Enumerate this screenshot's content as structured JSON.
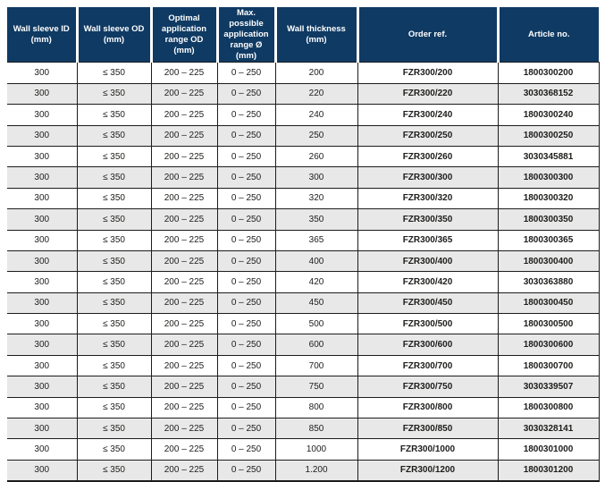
{
  "colors": {
    "header_bg": "#0f3a63",
    "header_text": "#ffffff",
    "row_alt_bg": "#e8e8e8",
    "grid_line": "#1c1c1e",
    "body_text": "#1d1d1b"
  },
  "table": {
    "headers": [
      "Wall sleeve ID\n(mm)",
      "Wall sleeve OD\n(mm)",
      "Optimal\napplication\nrange OD\n(mm)",
      "Max. possible\napplication\nrange Ø (mm)",
      "Wall thickness\n(mm)",
      "Order ref.",
      "Article no."
    ],
    "column_keys": [
      "wall-sleeve-id",
      "wall-sleeve-od",
      "optimal-application-range-od",
      "max-possible-application-range",
      "wall-thickness",
      "order-ref",
      "article-no"
    ],
    "rows": [
      [
        "300",
        "≤ 350",
        "200 – 225",
        "0 – 250",
        "200",
        "FZR300/200",
        "1800300200"
      ],
      [
        "300",
        "≤ 350",
        "200 – 225",
        "0 – 250",
        "220",
        "FZR300/220",
        "3030368152"
      ],
      [
        "300",
        "≤ 350",
        "200 – 225",
        "0 – 250",
        "240",
        "FZR300/240",
        "1800300240"
      ],
      [
        "300",
        "≤ 350",
        "200 – 225",
        "0 – 250",
        "250",
        "FZR300/250",
        "1800300250"
      ],
      [
        "300",
        "≤ 350",
        "200 – 225",
        "0 – 250",
        "260",
        "FZR300/260",
        "3030345881"
      ],
      [
        "300",
        "≤ 350",
        "200 – 225",
        "0 – 250",
        "300",
        "FZR300/300",
        "1800300300"
      ],
      [
        "300",
        "≤ 350",
        "200 – 225",
        "0 – 250",
        "320",
        "FZR300/320",
        "1800300320"
      ],
      [
        "300",
        "≤ 350",
        "200 – 225",
        "0 – 250",
        "350",
        "FZR300/350",
        "1800300350"
      ],
      [
        "300",
        "≤ 350",
        "200 – 225",
        "0 – 250",
        "365",
        "FZR300/365",
        "1800300365"
      ],
      [
        "300",
        "≤ 350",
        "200 – 225",
        "0 – 250",
        "400",
        "FZR300/400",
        "1800300400"
      ],
      [
        "300",
        "≤ 350",
        "200 – 225",
        "0 – 250",
        "420",
        "FZR300/420",
        "3030363880"
      ],
      [
        "300",
        "≤ 350",
        "200 – 225",
        "0 – 250",
        "450",
        "FZR300/450",
        "1800300450"
      ],
      [
        "300",
        "≤ 350",
        "200 – 225",
        "0 – 250",
        "500",
        "FZR300/500",
        "1800300500"
      ],
      [
        "300",
        "≤ 350",
        "200 – 225",
        "0 – 250",
        "600",
        "FZR300/600",
        "1800300600"
      ],
      [
        "300",
        "≤ 350",
        "200 – 225",
        "0 – 250",
        "700",
        "FZR300/700",
        "1800300700"
      ],
      [
        "300",
        "≤ 350",
        "200 – 225",
        "0 – 250",
        "750",
        "FZR300/750",
        "3030339507"
      ],
      [
        "300",
        "≤ 350",
        "200 – 225",
        "0 – 250",
        "800",
        "FZR300/800",
        "1800300800"
      ],
      [
        "300",
        "≤ 350",
        "200 – 225",
        "0 – 250",
        "850",
        "FZR300/850",
        "3030328141"
      ],
      [
        "300",
        "≤ 350",
        "200 – 225",
        "0 – 250",
        "1000",
        "FZR300/1000",
        "1800301000"
      ],
      [
        "300",
        "≤ 350",
        "200 – 225",
        "0 – 250",
        "1.200",
        "FZR300/1200",
        "1800301200"
      ]
    ]
  }
}
